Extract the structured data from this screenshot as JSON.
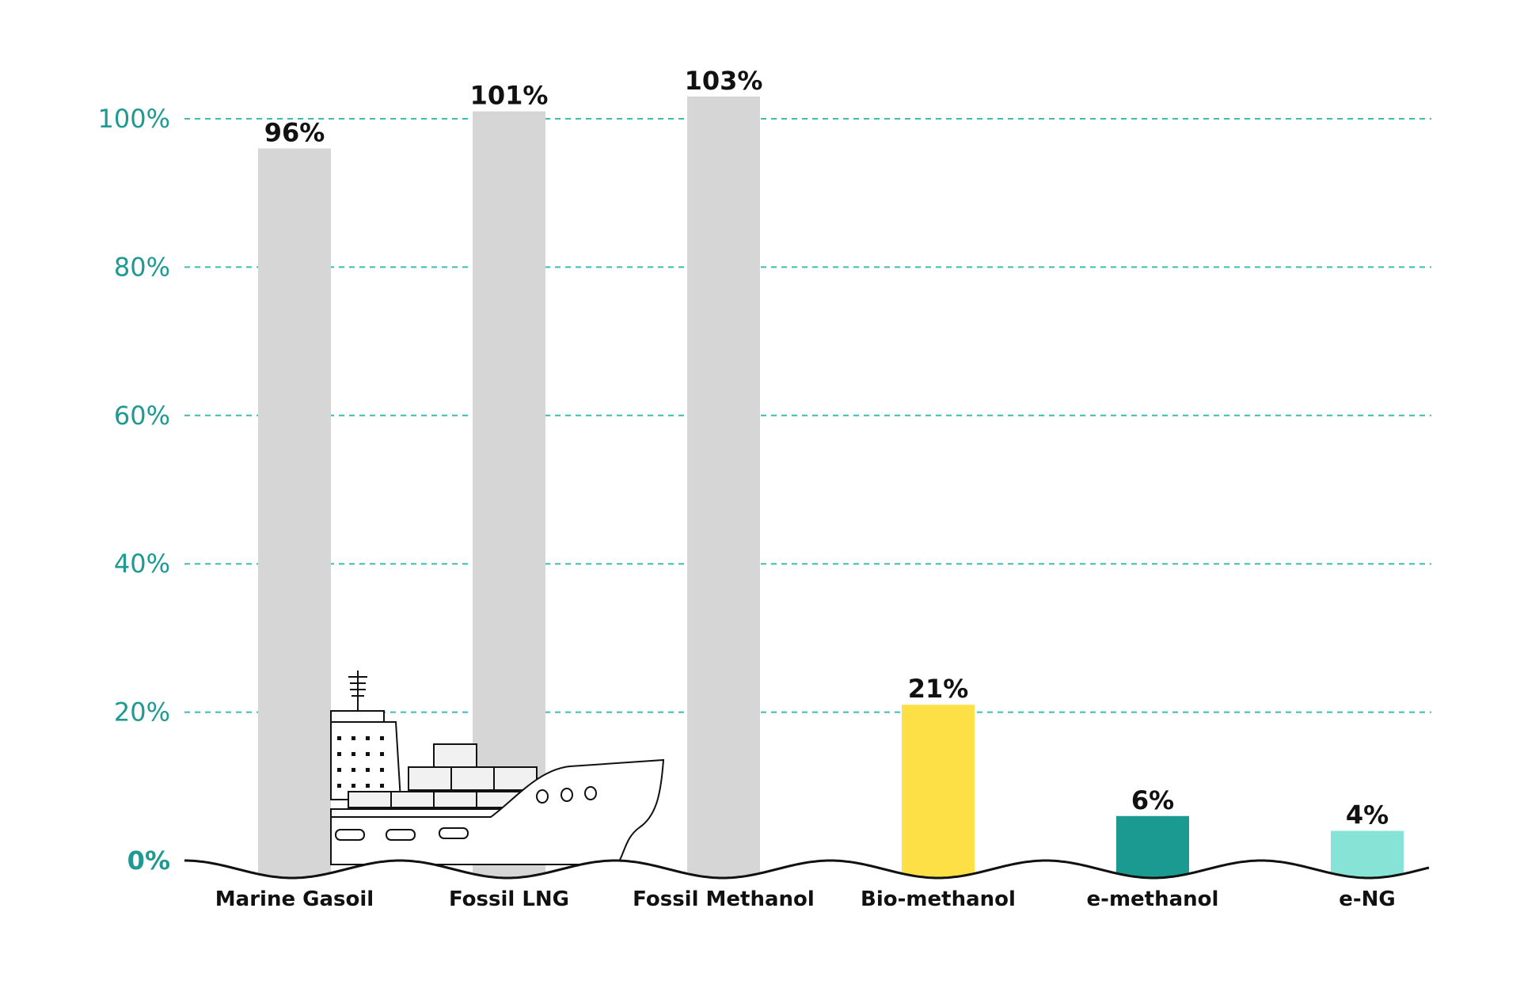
{
  "chart_data": {
    "type": "bar",
    "title": "",
    "xlabel": "",
    "ylabel": "",
    "ylim": [
      0,
      100
    ],
    "yticks": [
      0,
      20,
      40,
      60,
      80,
      100
    ],
    "ytick_labels": [
      "0%",
      "20%",
      "40%",
      "60%",
      "80%",
      "100%"
    ],
    "grid": true,
    "categories": [
      "Marine Gasoil",
      "Fossil LNG",
      "Fossil Methanol",
      "Bio-methanol",
      "e-methanol",
      "e-NG"
    ],
    "values": [
      96,
      101,
      103,
      21,
      6,
      4
    ],
    "value_labels": [
      "96%",
      "101%",
      "103%",
      "21%",
      "6%",
      "4%"
    ],
    "colors": [
      "#d6d6d6",
      "#d6d6d6",
      "#d6d6d6",
      "#fde046",
      "#1a9a90",
      "#87e3d5"
    ],
    "decoration": "container-ship-icon"
  },
  "colors": {
    "axis_text": "#1e9a92",
    "grid": "#3dbdb2",
    "wave": "#111111"
  }
}
